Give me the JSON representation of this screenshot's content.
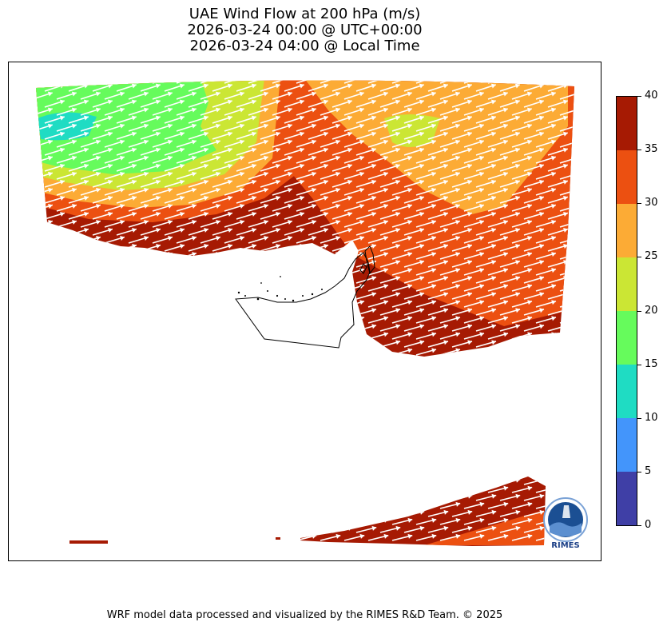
{
  "title": {
    "line1": "UAE Wind Flow at 200 hPa (m/s)",
    "line2": "2026-03-24 00:00 @ UTC+00:00",
    "line3": "2026-03-24 04:00 @ Local Time"
  },
  "colorbar": {
    "min": 0,
    "max": 40,
    "ticks": [
      "0",
      "5",
      "10",
      "15",
      "20",
      "25",
      "30",
      "35",
      "40"
    ],
    "colors": [
      "#3f3fa6",
      "#4395fb",
      "#1fdcc3",
      "#66fb5c",
      "#cbe634",
      "#fcab35",
      "#ec5011",
      "#a61a03"
    ]
  },
  "map": {
    "wind_direction": "west-southwest to east-northeast",
    "arrow_color": "#ffffff",
    "boundary_color": "#000000"
  },
  "logo": {
    "text": "RIMES",
    "color": "#1b3f86"
  },
  "footer": "WRF model data processed and visualized by the RIMES R&D Team. © 2025"
}
